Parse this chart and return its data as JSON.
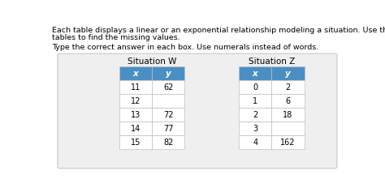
{
  "title_line1": "Each table displays a linear or an exponential relationship modeling a situation. Use the patterns in the",
  "title_line2": "tables to find the missing values.",
  "subtitle": "Type the correct answer in each box. Use numerals instead of words.",
  "sit_w_title": "Situation W",
  "sit_z_title": "Situation Z",
  "header_color": "#4a8fc4",
  "header_text_color": "#ffffff",
  "border_color": "#c0c0c0",
  "outer_bg": "#ffffff",
  "panel_bg": "#efefef",
  "panel_border": "#c8c8c8",
  "title_fontsize": 6.8,
  "subtitle_fontsize": 6.8,
  "table_title_fontsize": 7.5,
  "header_fontsize": 7.5,
  "cell_fontsize": 7.0,
  "sit_w_headers": [
    "x",
    "y"
  ],
  "sit_w_rows": [
    [
      "11",
      "62"
    ],
    [
      "12",
      ""
    ],
    [
      "13",
      "72"
    ],
    [
      "14",
      "77"
    ],
    [
      "15",
      "82"
    ]
  ],
  "sit_z_headers": [
    "x",
    "y"
  ],
  "sit_z_rows": [
    [
      "0",
      "2"
    ],
    [
      "1",
      "6"
    ],
    [
      "2",
      "18"
    ],
    [
      "3",
      ""
    ],
    [
      "4",
      "162"
    ]
  ]
}
